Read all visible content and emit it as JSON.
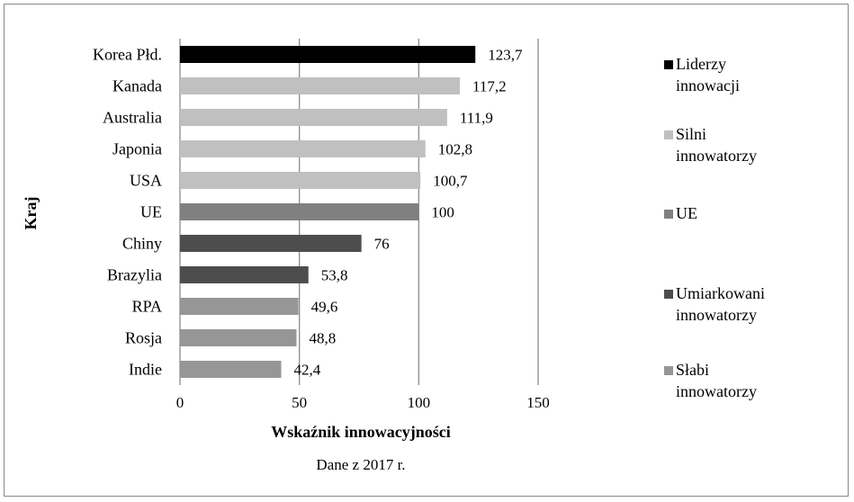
{
  "chart_data": {
    "type": "bar",
    "orientation": "horizontal",
    "categories": [
      "Korea Płd.",
      "Kanada",
      "Australia",
      "Japonia",
      "USA",
      "UE",
      "Chiny",
      "Brazylia",
      "RPA",
      "Rosja",
      "Indie"
    ],
    "values": [
      123.7,
      117.2,
      111.9,
      102.8,
      100.7,
      100,
      76,
      53.8,
      49.6,
      48.8,
      42.4
    ],
    "value_labels": [
      "123,7",
      "117,2",
      "111,9",
      "102,8",
      "100,7",
      "100",
      "76",
      "53,8",
      "49,6",
      "48,8",
      "42,4"
    ],
    "groups": [
      "lider",
      "silni",
      "silni",
      "silni",
      "silni",
      "ue",
      "umiarkowani",
      "umiarkowani",
      "slabi",
      "slabi",
      "slabi"
    ],
    "xlabel": "Wskaźnik innowacyjności",
    "ylabel": "Kraj",
    "note": "Dane z 2017 r.",
    "xlim": [
      0,
      150
    ],
    "xticks": [
      0,
      50,
      100,
      150
    ],
    "grid": "vertical",
    "legend_position": "right",
    "legend": [
      {
        "key": "lider",
        "lines": [
          "Liderzy",
          "innowacji"
        ],
        "color": "#000000"
      },
      {
        "key": "silni",
        "lines": [
          "Silni",
          "innowatorzy"
        ],
        "color": "#c0c0c0"
      },
      {
        "key": "ue",
        "lines": [
          "UE"
        ],
        "color": "#808080"
      },
      {
        "key": "umiarkowani",
        "lines": [
          "Umiarkowani",
          "innowatorzy"
        ],
        "color": "#4d4d4d"
      },
      {
        "key": "slabi",
        "lines": [
          "Słabi",
          "innowatorzy"
        ],
        "color": "#969696"
      }
    ]
  }
}
